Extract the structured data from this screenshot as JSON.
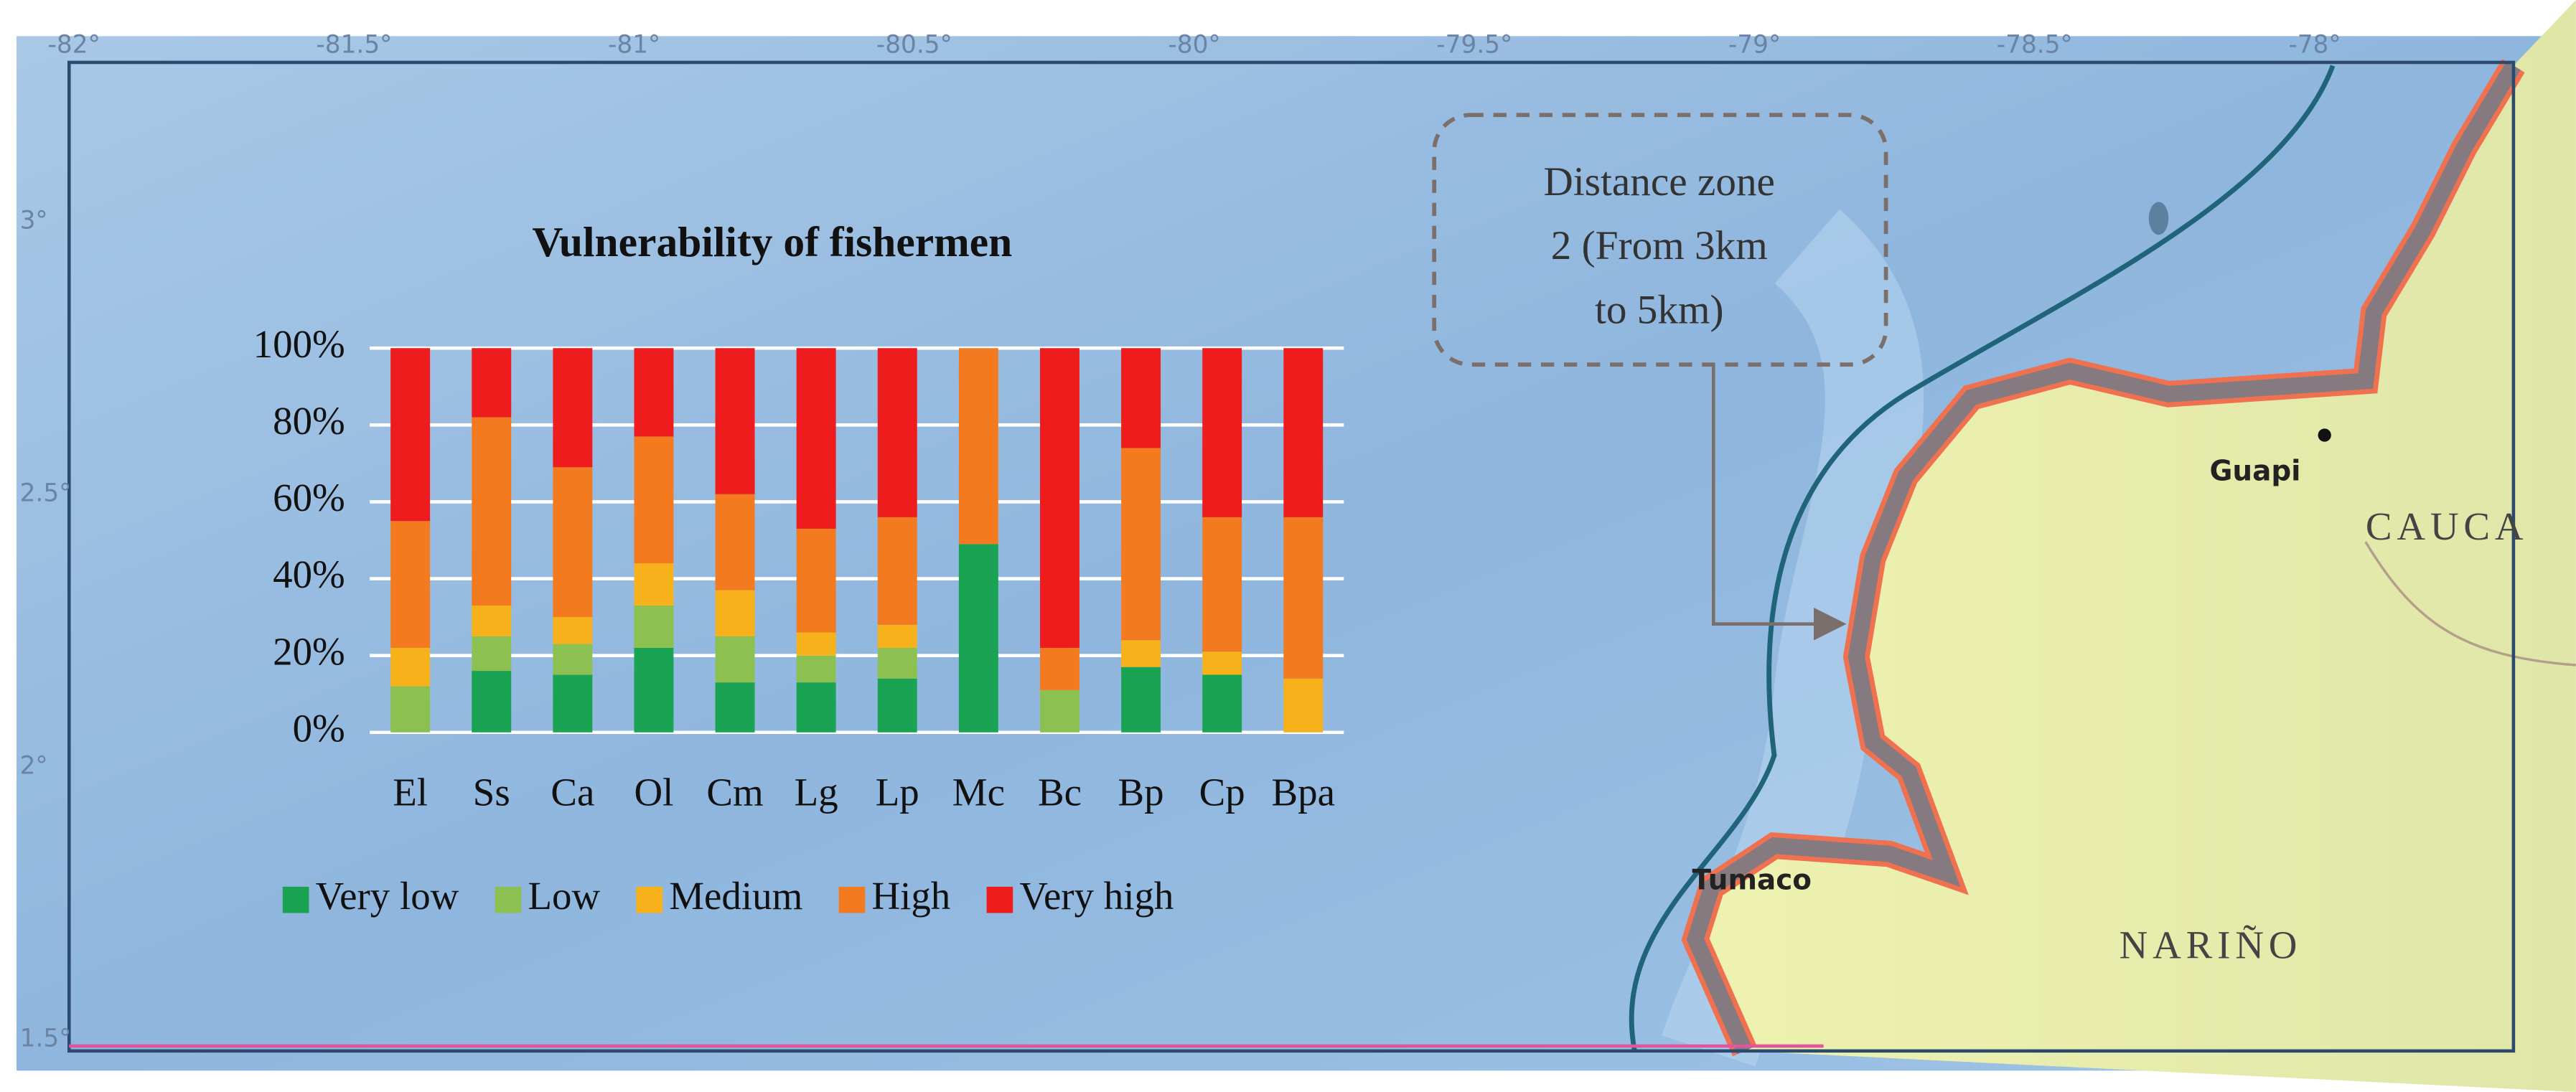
{
  "map": {
    "longitude_labels": [
      "-82°",
      "-81.5°",
      "-81°",
      "-80.5°",
      "-80°",
      "-79.5°",
      "-79°",
      "-78.5°",
      "-78°"
    ],
    "latitude_labels": [
      "3°",
      "2.5°",
      "2°",
      "1.5°"
    ],
    "place_labels": {
      "guapi": "Guapi",
      "cauca": "CAUCA",
      "narino": "NARIÑO",
      "tumaco": "Tumaco"
    },
    "callout": [
      "Distance zone",
      "2 (From 3km",
      "to 5km)"
    ]
  },
  "chart_data": {
    "type": "bar",
    "stacked": true,
    "title": "Vulnerability of fishermen",
    "categories": [
      "El",
      "Ss",
      "Ca",
      "Ol",
      "Cm",
      "Lg",
      "Lp",
      "Mc",
      "Bc",
      "Bp",
      "Cp",
      "Bpa"
    ],
    "series": [
      {
        "name": "Very low",
        "color": "#1aa352",
        "values": [
          0,
          16,
          15,
          22,
          13,
          13,
          14,
          49,
          0,
          17,
          15,
          0
        ]
      },
      {
        "name": "Low",
        "color": "#8cc152",
        "values": [
          12,
          9,
          8,
          11,
          12,
          7,
          8,
          0,
          11,
          0,
          0,
          0
        ]
      },
      {
        "name": "Medium",
        "color": "#f7b21b",
        "values": [
          10,
          8,
          7,
          11,
          12,
          6,
          6,
          0,
          0,
          7,
          6,
          14
        ]
      },
      {
        "name": "High",
        "color": "#f47a1f",
        "values": [
          33,
          49,
          39,
          33,
          25,
          27,
          28,
          51,
          11,
          50,
          35,
          42
        ]
      },
      {
        "name": "Very high",
        "color": "#ee1c1c",
        "values": [
          45,
          18,
          31,
          23,
          38,
          47,
          44,
          0,
          78,
          26,
          44,
          44
        ]
      }
    ],
    "ylim": [
      0,
      100
    ],
    "yticks": [
      {
        "value": 0,
        "label": "0%"
      },
      {
        "value": 20,
        "label": "20%"
      },
      {
        "value": 40,
        "label": "40%"
      },
      {
        "value": 60,
        "label": "60%"
      },
      {
        "value": 80,
        "label": "80%"
      },
      {
        "value": 100,
        "label": "100%"
      }
    ],
    "grid": true,
    "legend": "bottom"
  }
}
